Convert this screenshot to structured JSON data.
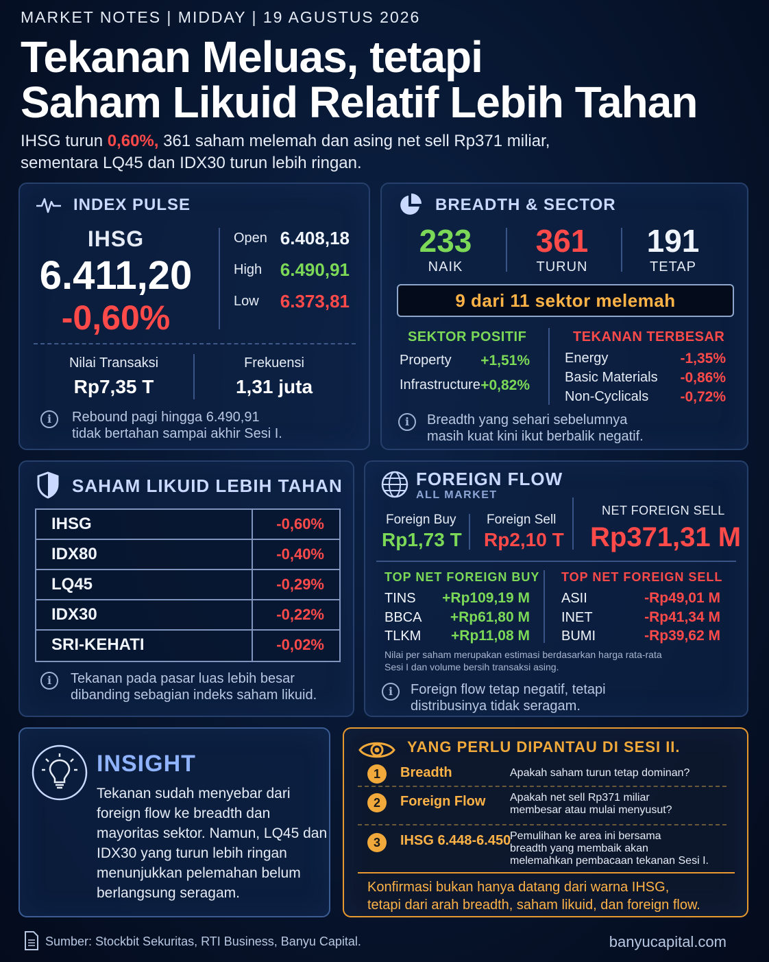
{
  "header": {
    "kicker": "MARKET NOTES | MIDDAY | 19 AGUSTUS 2026",
    "title_line1": "Tekanan Meluas, tetapi",
    "title_line2": "Saham Likuid Relatif Lebih Tahan",
    "sub_a": "IHSG turun ",
    "sub_highlight": "0,60%,",
    "sub_b": " 361 saham melemah dan asing net sell Rp371 miliar,",
    "sub_line2": "sementara LQ45 dan IDX30 turun lebih ringan."
  },
  "index_pulse": {
    "title": "INDEX PULSE",
    "name": "IHSG",
    "value": "6.411,20",
    "change": "-0,60%",
    "open_label": "Open",
    "open_value": "6.408,18",
    "high_label": "High",
    "high_value": "6.490,91",
    "low_label": "Low",
    "low_value": "6.373,81",
    "turnover_label": "Nilai Transaksi",
    "turnover_value": "Rp7,35 T",
    "freq_label": "Frekuensi",
    "freq_value": "1,31 juta",
    "note_line1": "Rebound pagi hingga 6.490,91",
    "note_line2": "tidak bertahan sampai akhir Sesi I."
  },
  "breadth": {
    "title": "BREADTH & SECTOR",
    "up_count": "233",
    "up_label": "NAIK",
    "down_count": "361",
    "down_label": "TURUN",
    "flat_count": "191",
    "flat_label": "TETAP",
    "sector_summary": "9 dari 11 sektor melemah",
    "positive_head": "SEKTOR POSITIF",
    "positive": [
      {
        "name": "Property",
        "value": "+1,51%"
      },
      {
        "name": "Infrastructure",
        "value": "+0,82%"
      }
    ],
    "negative_head": "TEKANAN TERBESAR",
    "negative": [
      {
        "name": "Energy",
        "value": "-1,35%"
      },
      {
        "name": "Basic Materials",
        "value": "-0,86%"
      },
      {
        "name": "Non-Cyclicals",
        "value": "-0,72%"
      }
    ],
    "note_line1": "Breadth yang sehari sebelumnya",
    "note_line2": "masih kuat kini ikut berbalik negatif."
  },
  "liquid": {
    "title": "SAHAM LIKUID LEBIH TAHAN",
    "rows": [
      {
        "name": "IHSG",
        "value": "-0,60%"
      },
      {
        "name": "IDX80",
        "value": "-0,40%"
      },
      {
        "name": "LQ45",
        "value": "-0,29%"
      },
      {
        "name": "IDX30",
        "value": "-0,22%"
      },
      {
        "name": "SRI-KEHATI",
        "value": "-0,02%"
      }
    ],
    "note_line1": "Tekanan pada pasar luas lebih besar",
    "note_line2": "dibanding sebagian indeks saham likuid."
  },
  "foreign": {
    "title": "FOREIGN FLOW",
    "subtitle": "ALL MARKET",
    "buy_label": "Foreign Buy",
    "buy_value": "Rp1,73 T",
    "sell_label": "Foreign Sell",
    "sell_value": "Rp2,10 T",
    "net_label": "NET FOREIGN SELL",
    "net_value": "Rp371,31 M",
    "top_buy_head": "TOP NET FOREIGN BUY",
    "top_buy": [
      {
        "code": "TINS",
        "amount": "+Rp109,19 M"
      },
      {
        "code": "BBCA",
        "amount": "+Rp61,80 M"
      },
      {
        "code": "TLKM",
        "amount": "+Rp11,08 M"
      }
    ],
    "top_sell_head": "TOP NET FOREIGN SELL",
    "top_sell": [
      {
        "code": "ASII",
        "amount": "-Rp49,01 M"
      },
      {
        "code": "INET",
        "amount": "-Rp41,34 M"
      },
      {
        "code": "BUMI",
        "amount": "-Rp39,62 M"
      }
    ],
    "method_line1": "Nilai per saham merupakan estimasi berdasarkan harga rata-rata",
    "method_line2": "Sesi I dan volume bersih transaksi asing.",
    "note_line1": "Foreign flow tetap negatif, tetapi",
    "note_line2": "distribusinya tidak seragam."
  },
  "insight": {
    "title": "INSIGHT",
    "body": "Tekanan sudah menyebar dari foreign flow ke breadth dan mayoritas sektor. Namun, LQ45 dan IDX30 yang turun lebih ringan menunjukkan pelemahan belum berlangsung seragam."
  },
  "watch": {
    "title": "YANG PERLU DIPANTAU DI SESI II.",
    "items": [
      {
        "num": "1",
        "title": "Breadth",
        "line1": "Apakah saham turun tetap dominan?",
        "line2": "",
        "line3": ""
      },
      {
        "num": "2",
        "title": "Foreign Flow",
        "line1": "Apakah net sell Rp371 miliar",
        "line2": "membesar atau mulai menyusut?",
        "line3": ""
      },
      {
        "num": "3",
        "title": "IHSG 6.448-6.450",
        "line1": "Pemulihan ke area ini bersama",
        "line2": "breadth yang membaik akan",
        "line3": "melemahkan pembacaan tekanan Sesi I."
      }
    ],
    "conclusion_line1": "Konfirmasi bukan hanya datang dari warna IHSG,",
    "conclusion_line2": "tetapi dari arah breadth, saham likuid, dan foreign flow."
  },
  "footer": {
    "source": "Sumber: Stockbit Sekuritas, RTI Business, Banyu Capital.",
    "url": "banyucapital.com"
  },
  "colors": {
    "positive": "#7cd957",
    "negative": "#ff4a4a",
    "accent": "#ffb347",
    "background": "#07152e"
  }
}
